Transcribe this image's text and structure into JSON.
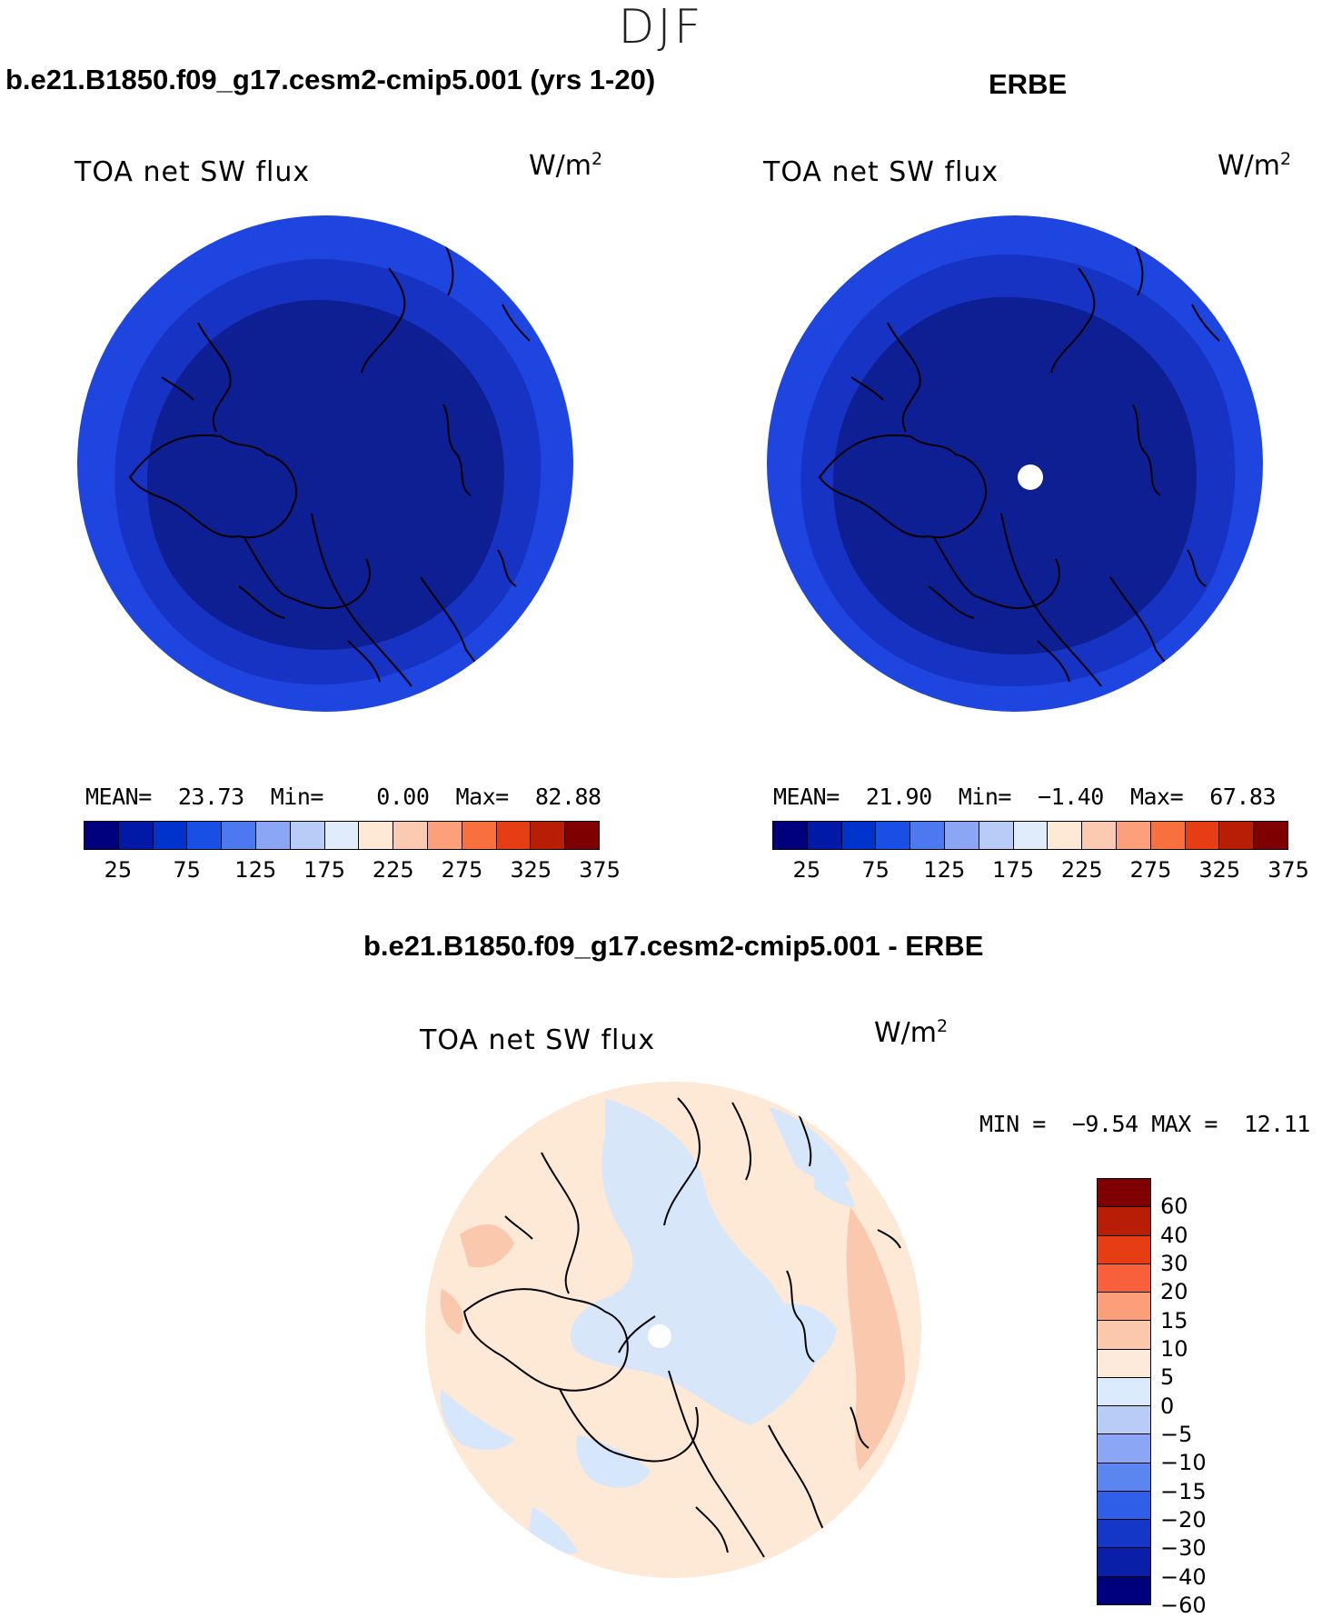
{
  "season": "DJF",
  "panels": [
    {
      "title": "b.e21.B1850.f09_g17.cesm2-cmip5.001 (yrs 1-20)",
      "variable": "TOA net SW flux",
      "units_base": "W/m",
      "units_exp": "2",
      "stats": {
        "mean_label": "MEAN=",
        "mean": "23.73",
        "min_label": "Min=",
        "min": "0.00",
        "max_label": "Max=",
        "max": "82.88"
      },
      "colorbar_ticks": [
        "25",
        "75",
        "125",
        "175",
        "225",
        "275",
        "325",
        "375"
      ]
    },
    {
      "title": "ERBE",
      "variable": "TOA net SW flux",
      "units_base": "W/m",
      "units_exp": "2",
      "stats": {
        "mean_label": "MEAN=",
        "mean": "21.90",
        "min_label": "Min=",
        "min": "−1.40",
        "max_label": "Max=",
        "max": "67.83"
      },
      "colorbar_ticks": [
        "25",
        "75",
        "125",
        "175",
        "225",
        "275",
        "325",
        "375"
      ]
    },
    {
      "title": "b.e21.B1850.f09_g17.cesm2-cmip5.001 - ERBE",
      "variable": "TOA net SW flux",
      "units_base": "W/m",
      "units_exp": "2",
      "stats": {
        "min_label": "MIN =",
        "min": "−9.54",
        "max_label": "MAX =",
        "max": "12.11"
      },
      "colorbar_labels": [
        "60",
        "40",
        "30",
        "20",
        "15",
        "10",
        "5",
        "0",
        "−5",
        "−10",
        "−15",
        "−20",
        "−30",
        "−40",
        "−60"
      ]
    }
  ],
  "colors": {
    "abs_scale": [
      "#00007f",
      "#0019a6",
      "#0033cc",
      "#1a4fe6",
      "#4d79f0",
      "#8aa6f5",
      "#b9ccf8",
      "#e0ecfc",
      "#fde9d6",
      "#fccab0",
      "#fba07a",
      "#f7703d",
      "#e63d14",
      "#b81e06",
      "#7f0000"
    ],
    "diff_scale": [
      "#7f0000",
      "#b81e06",
      "#e63d14",
      "#f7603a",
      "#fb9f7a",
      "#fcc8ab",
      "#fdeadb",
      "#dbeafc",
      "#b7cdf7",
      "#8aa6f5",
      "#5b86f0",
      "#2f5fe8",
      "#1537c8",
      "#0a1fa8",
      "#00007f"
    ],
    "map_outer": "#1f45e0",
    "map_mid": "#1633c3",
    "map_inner": "#0e1f94",
    "diff_bg": "#fde9d6",
    "diff_blue": "#d6e6fb",
    "diff_orange": "#f9c8ad"
  }
}
